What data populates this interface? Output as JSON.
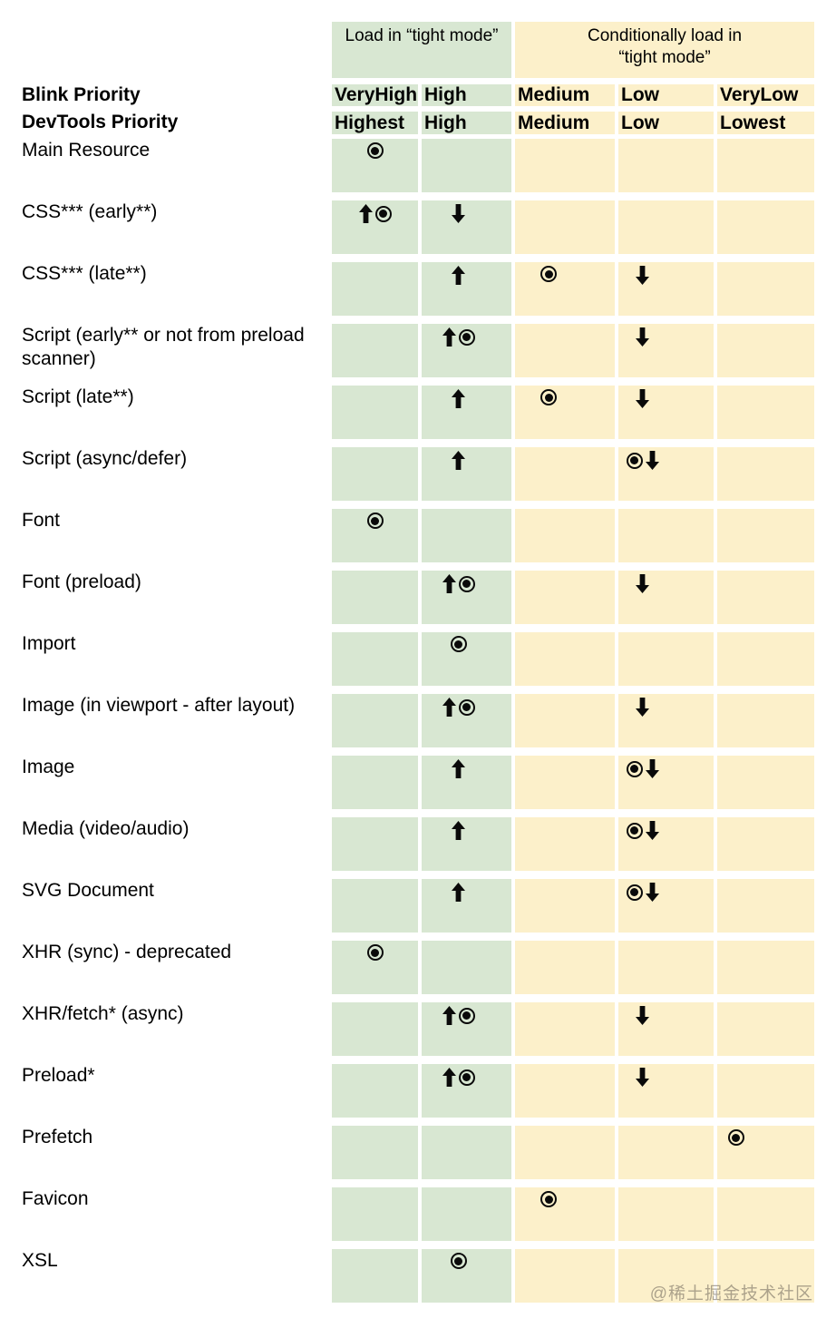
{
  "colors": {
    "tight_mode_bg": "#d8e7d2",
    "conditional_bg": "#fcf0ca",
    "symbol_color": "#0a0a0a",
    "page_bg": "#ffffff"
  },
  "row_axis": {
    "blink_label": "Blink Priority",
    "devtools_label": "DevTools Priority"
  },
  "icons": {
    "target": "current-priority-icon",
    "up": "priority-up-arrow-icon",
    "down": "priority-down-arrow-icon"
  },
  "watermark": "@稀土掘金技术社区",
  "chart_data": {
    "type": "table",
    "title": "",
    "legend_position": "none",
    "column_groups": [
      {
        "label": "Load in “tight mode”",
        "color": "#d8e7d2",
        "columns": [
          "VeryHigh",
          "High"
        ]
      },
      {
        "label": "Conditionally load in “tight mode”",
        "color": "#fcf0ca",
        "columns": [
          "Medium",
          "Low",
          "VeryLow"
        ]
      }
    ],
    "columns": [
      {
        "blink": "VeryHigh",
        "devtools": "Highest",
        "group": "tight"
      },
      {
        "blink": "High",
        "devtools": "High",
        "group": "tight"
      },
      {
        "blink": "Medium",
        "devtools": "Medium",
        "group": "conditional"
      },
      {
        "blink": "Low",
        "devtools": "Low",
        "group": "conditional"
      },
      {
        "blink": "VeryLow",
        "devtools": "Lowest",
        "group": "conditional"
      }
    ],
    "rows": [
      {
        "label": "Main Resource",
        "cells": [
          [
            "target"
          ],
          [],
          [],
          [],
          []
        ]
      },
      {
        "label": "CSS*** (early**)",
        "cells": [
          [
            "up",
            "target"
          ],
          [
            "down"
          ],
          [],
          [],
          []
        ]
      },
      {
        "label": "CSS*** (late**)",
        "cells": [
          [],
          [
            "up"
          ],
          [
            "target"
          ],
          [
            "down"
          ],
          []
        ]
      },
      {
        "label": "Script (early** or not from preload scanner)",
        "cells": [
          [],
          [
            "up",
            "target"
          ],
          [],
          [
            "down"
          ],
          []
        ]
      },
      {
        "label": "Script (late**)",
        "cells": [
          [],
          [
            "up"
          ],
          [
            "target"
          ],
          [
            "down"
          ],
          []
        ]
      },
      {
        "label": "Script (async/defer)",
        "cells": [
          [],
          [
            "up"
          ],
          [],
          [
            "target",
            "down"
          ],
          []
        ]
      },
      {
        "label": "Font",
        "cells": [
          [
            "target"
          ],
          [],
          [],
          [],
          []
        ]
      },
      {
        "label": "Font (preload)",
        "cells": [
          [],
          [
            "up",
            "target"
          ],
          [],
          [
            "down"
          ],
          []
        ]
      },
      {
        "label": "Import",
        "cells": [
          [],
          [
            "target"
          ],
          [],
          [],
          []
        ]
      },
      {
        "label": "Image (in viewport - after layout)",
        "cells": [
          [],
          [
            "up",
            "target"
          ],
          [],
          [
            "down"
          ],
          []
        ]
      },
      {
        "label": "Image",
        "cells": [
          [],
          [
            "up"
          ],
          [],
          [
            "target",
            "down"
          ],
          []
        ]
      },
      {
        "label": "Media (video/audio)",
        "cells": [
          [],
          [
            "up"
          ],
          [],
          [
            "target",
            "down"
          ],
          []
        ]
      },
      {
        "label": "SVG Document",
        "cells": [
          [],
          [
            "up"
          ],
          [],
          [
            "target",
            "down"
          ],
          []
        ]
      },
      {
        "label": "XHR (sync) - deprecated",
        "cells": [
          [
            "target"
          ],
          [],
          [],
          [],
          []
        ]
      },
      {
        "label": "XHR/fetch* (async)",
        "cells": [
          [],
          [
            "up",
            "target"
          ],
          [],
          [
            "down"
          ],
          []
        ]
      },
      {
        "label": "Preload*",
        "cells": [
          [],
          [
            "up",
            "target"
          ],
          [],
          [
            "down"
          ],
          []
        ]
      },
      {
        "label": "Prefetch",
        "cells": [
          [],
          [],
          [],
          [],
          [
            "target"
          ]
        ]
      },
      {
        "label": "Favicon",
        "cells": [
          [],
          [],
          [
            "target"
          ],
          [],
          []
        ]
      },
      {
        "label": "XSL",
        "cells": [
          [],
          [
            "target"
          ],
          [],
          [],
          []
        ]
      }
    ]
  }
}
